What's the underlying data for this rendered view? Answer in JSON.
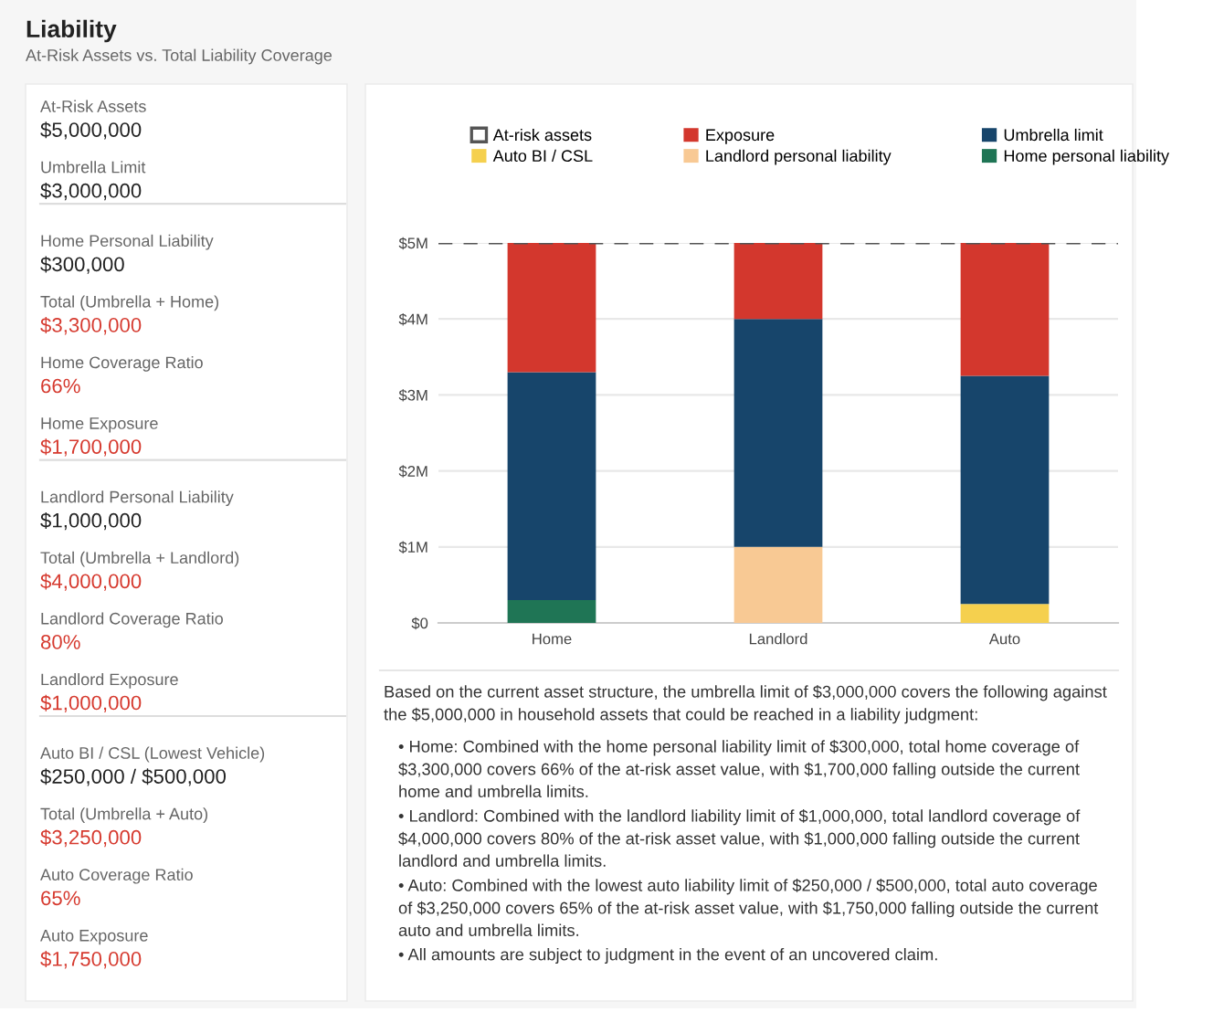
{
  "chart_data": [
    {
      "type": "other",
      "title": "Liability",
      "subtitle": "At-Risk Assets vs. Total Liability Coverage",
      "annotations": [
        "At-Risk Assets",
        "$5,000,000",
        "Umbrella Limit",
        "$3,000,000",
        "Home Personal Liability",
        "$300,000",
        "Total (Umbrella + Home)",
        "$3,300,000",
        "Home Coverage Ratio",
        "66%",
        "Home Exposure",
        "$1,700,000",
        "Landlord Personal Liability",
        "$1,000,000",
        "Total (Umbrella + Landlord)",
        "$4,000,000",
        "Landlord Coverage Ratio",
        "80%",
        "Landlord Exposure",
        "$1,000,000",
        "Auto BI / CSL (Lowest Vehicle)",
        "$250,000 / $500,000",
        "Total (Umbrella + Auto)",
        "$3,250,000",
        "Auto Coverage Ratio",
        "65%",
        "Auto Exposure",
        "$1,750,000"
      ],
      "colors": [
        "#666666",
        "#222222",
        "#666666",
        "#222222",
        "#666666",
        "#222222",
        "#666666",
        "#d63a2f",
        "#666666",
        "#d63a2f",
        "#666666",
        "#d63a2f",
        "#666666",
        "#222222",
        "#666666",
        "#d63a2f",
        "#666666",
        "#d63a2f",
        "#666666",
        "#d63a2f",
        "#666666",
        "#222222",
        "#666666",
        "#d63a2f",
        "#666666",
        "#d63a2f",
        "#666666",
        "#d63a2f"
      ]
    },
    {
      "type": "bar",
      "stacked": true,
      "categories": [
        "Home",
        "Landlord",
        "Auto"
      ],
      "series": [
        {
          "name": "Home personal liability",
          "color": "#1f7555",
          "values": [
            0.3,
            null,
            null
          ]
        },
        {
          "name": "Landlord personal liability",
          "color": "#f8c994",
          "values": [
            null,
            1,
            null
          ]
        },
        {
          "name": "Auto BI / CSL",
          "color": "#f5d04e",
          "values": [
            null,
            null,
            0.25
          ]
        },
        {
          "name": "Umbrella limit",
          "color": "#17456b",
          "values": [
            3,
            3,
            3
          ]
        },
        {
          "name": "Exposure",
          "color": "#d3372d",
          "values": [
            1.7,
            1,
            1.75
          ]
        }
      ],
      "ylim": [
        0,
        5
      ],
      "yticks": [
        {
          "value": 0,
          "label": "$0"
        },
        {
          "value": 1,
          "label": "$1M"
        },
        {
          "value": 2,
          "label": "$2M"
        },
        {
          "value": 3,
          "label": "$3M"
        },
        {
          "value": 4,
          "label": "$4M"
        },
        {
          "value": 5,
          "label": "$5M"
        }
      ],
      "ref_lines": [
        {
          "axis": "y",
          "value": 5,
          "label": "At-risk assets",
          "color": "#555555",
          "line_style": "dashed"
        }
      ],
      "grid": "y",
      "legend": "top",
      "annotations": [
        "Based on the current asset structure, the umbrella limit of $3,000,000 covers the following against the $5,000,000 in household assets that could be reached in a liability judgment:",
        "• Home: Combined with the home personal liability limit of $300,000, total home coverage of $3,300,000 covers 66% of the at-risk asset value, with $1,700,000 falling outside the current home and umbrella limits.",
        "• Landlord: Combined with the landlord liability limit of $1,000,000, total landlord coverage of $4,000,000 covers 80% of the at-risk asset value, with $1,000,000 falling outside the current landlord and umbrella limits.",
        "• Auto: Combined with the lowest auto liability limit of $250,000 / $500,000, total auto coverage of $3,250,000 covers 65% of the at-risk asset value, with $1,750,000 falling outside the current auto and umbrella limits.",
        "• All amounts are subject to judgment in the event of an uncovered claim."
      ]
    }
  ]
}
